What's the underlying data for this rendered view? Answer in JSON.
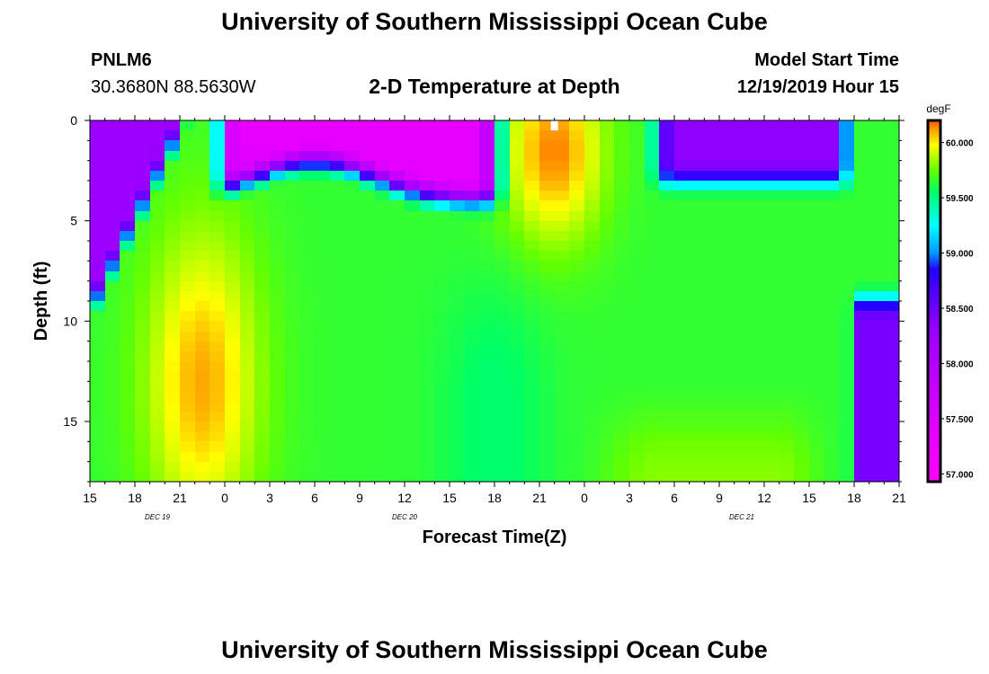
{
  "header": {
    "title": "University of Southern Mississippi Ocean Cube",
    "station_id": "PNLM6",
    "station_coords": "30.3680N 88.5630W",
    "model_start_label": "Model Start Time",
    "model_start_value": "12/19/2019 Hour 15"
  },
  "footer": {
    "title": "University of Southern Mississippi Ocean Cube"
  },
  "chart_data": {
    "type": "heatmap",
    "title": "2-D Temperature at Depth",
    "xlabel": "Forecast Time(Z)",
    "ylabel": "Depth (ft)",
    "x_tick_labels": [
      "15",
      "18",
      "21",
      "0",
      "3",
      "6",
      "9",
      "12",
      "15",
      "18",
      "21",
      "0",
      "3",
      "6",
      "9",
      "12",
      "15",
      "18",
      "21"
    ],
    "x_hours": [
      0,
      3,
      6,
      9,
      12,
      15,
      18,
      21,
      24,
      27,
      30,
      33,
      36,
      39,
      42,
      45,
      48,
      51,
      54
    ],
    "date_labels": [
      {
        "label": "DEC 19",
        "hour": 4.5
      },
      {
        "label": "DEC 20",
        "hour": 21
      },
      {
        "label": "DEC 21",
        "hour": 43.5
      }
    ],
    "y_ticks": [
      0,
      5,
      10,
      15
    ],
    "ylim": [
      0,
      18
    ],
    "xlim_hours": [
      0,
      54
    ],
    "colorbar": {
      "unit": "degF",
      "ticks": [
        "57.000",
        "57.500",
        "58.000",
        "58.500",
        "59.000",
        "59.500",
        "60.000"
      ],
      "range": [
        56.93,
        60.2
      ],
      "stops": [
        {
          "v": 56.95,
          "c": "#ff00ff"
        },
        {
          "v": 57.5,
          "c": "#dd00ff"
        },
        {
          "v": 58.3,
          "c": "#9900ff"
        },
        {
          "v": 58.85,
          "c": "#2200ff"
        },
        {
          "v": 59.0,
          "c": "#0099ff"
        },
        {
          "v": 59.25,
          "c": "#00ffff"
        },
        {
          "v": 59.55,
          "c": "#00ff66"
        },
        {
          "v": 59.75,
          "c": "#66ff00"
        },
        {
          "v": 59.98,
          "c": "#ffff00"
        },
        {
          "v": 60.12,
          "c": "#ff9900"
        },
        {
          "v": 60.2,
          "c": "#ff5500"
        }
      ]
    },
    "max_marker": {
      "hour": 31,
      "depth": 0.2
    },
    "features": {
      "background_degF": 59.65,
      "warm_core": {
        "hour": 7.5,
        "depth": 13.0,
        "peak_degF": 60.1
      },
      "warm_surface_plume": {
        "hour": 31,
        "depth": 1.5,
        "peak_degF": 60.12
      },
      "cold_surface_layer_1": {
        "start_hour": 8,
        "end_hour": 27,
        "max_depth_ft": 4.5,
        "min_degF": 57.2
      },
      "cold_surface_layer_2": {
        "start_hour": 38,
        "end_hour": 51,
        "max_depth_ft": 3.5,
        "min_degF": 58.5
      },
      "cold_left_wedge": {
        "start_hour": 0,
        "end_hour": 6,
        "min_degF": 58.3
      },
      "cold_bottom_right": {
        "start_hour": 51,
        "end_hour": 54,
        "min_depth_ft": 10,
        "min_degF": 58.5
      }
    }
  }
}
